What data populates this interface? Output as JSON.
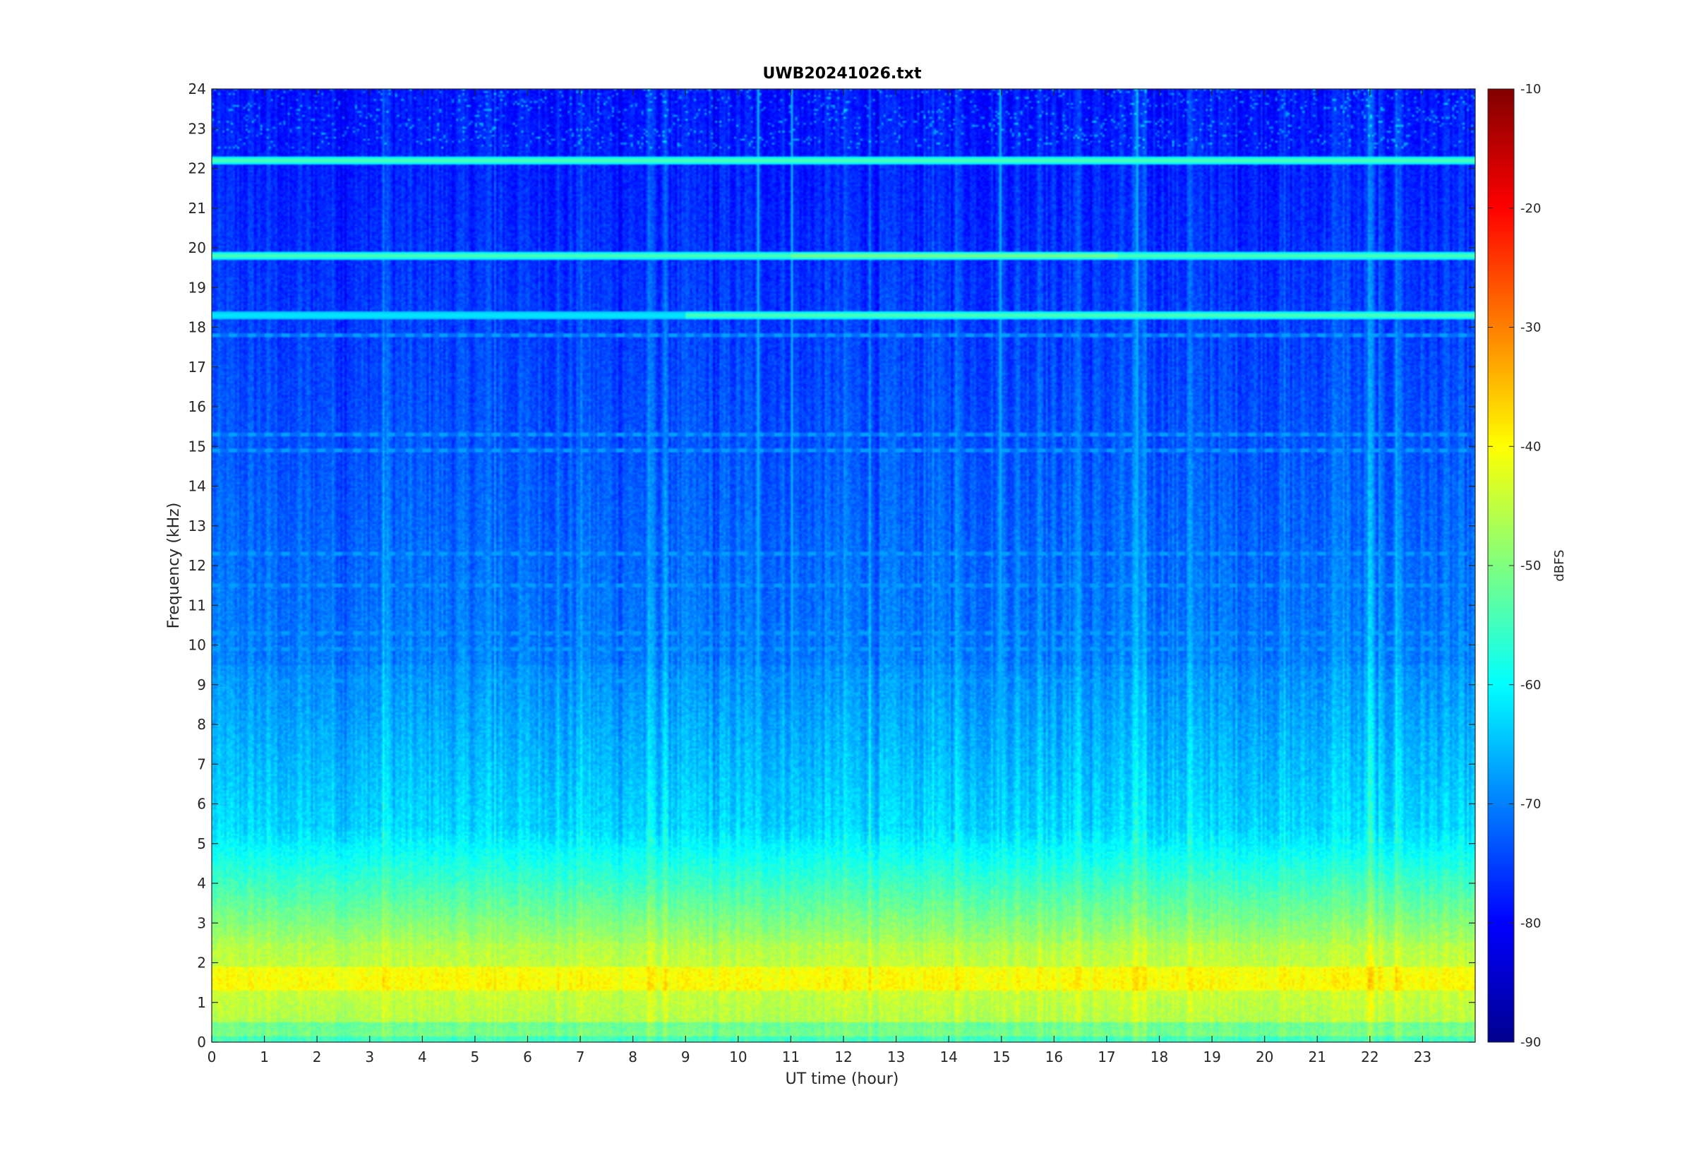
{
  "chart_data": {
    "type": "heatmap",
    "title": "UWB20241026.txt",
    "xlabel": "UT time (hour)",
    "ylabel": "Frequency (kHz)",
    "xlim": [
      0,
      24
    ],
    "ylim": [
      0,
      24
    ],
    "xticks": [
      "0",
      "1",
      "2",
      "3",
      "4",
      "5",
      "6",
      "7",
      "8",
      "9",
      "10",
      "11",
      "12",
      "13",
      "14",
      "15",
      "16",
      "17",
      "18",
      "19",
      "20",
      "21",
      "22",
      "23"
    ],
    "yticks": [
      "0",
      "1",
      "2",
      "3",
      "4",
      "5",
      "6",
      "7",
      "8",
      "9",
      "10",
      "11",
      "12",
      "13",
      "14",
      "15",
      "16",
      "17",
      "18",
      "19",
      "20",
      "21",
      "22",
      "23",
      "24"
    ],
    "colorbar": {
      "label": "dBFS",
      "range": [
        -90,
        -10
      ],
      "ticks": [
        "-10",
        "-20",
        "-30",
        "-40",
        "-50",
        "-60",
        "-70",
        "-80",
        "-90"
      ],
      "colormap": "jet"
    },
    "spectral_features_khz": {
      "strong_narrowband_lines": [
        19.8,
        18.3,
        22.2
      ],
      "secondary_lines": [
        17.8,
        15.3,
        14.9,
        12.3,
        11.5,
        10.3,
        9.9,
        9.1,
        6.0
      ],
      "high_energy_band": [
        0.5,
        2.5
      ],
      "peak_energy_band": [
        1.3,
        1.9
      ],
      "vertical_broadband_events_hours": [
        10.35,
        11.0,
        14.95,
        17.55
      ]
    }
  }
}
